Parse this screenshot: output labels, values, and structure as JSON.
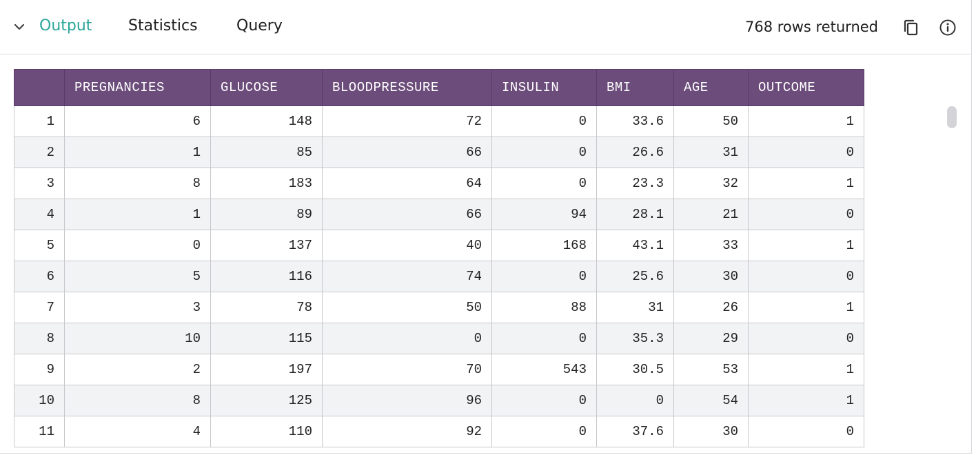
{
  "header": {
    "tabs": [
      {
        "label": "Output",
        "active": true
      },
      {
        "label": "Statistics",
        "active": false
      },
      {
        "label": "Query",
        "active": false
      }
    ],
    "rows_returned": "768 rows returned",
    "icons": {
      "collapse": "chevron-down-icon",
      "copy": "copy-icon",
      "info": "info-icon"
    },
    "accent_color": "#2aa79b"
  },
  "table": {
    "header_color": "#6b4c7a",
    "columns": [
      "",
      "PREGNANCIES",
      "GLUCOSE",
      "BLOODPRESSURE",
      "INSULIN",
      "BMI",
      "AGE",
      "OUTCOME"
    ],
    "rows": [
      [
        "1",
        "6",
        "148",
        "72",
        "0",
        "33.6",
        "50",
        "1"
      ],
      [
        "2",
        "1",
        "85",
        "66",
        "0",
        "26.6",
        "31",
        "0"
      ],
      [
        "3",
        "8",
        "183",
        "64",
        "0",
        "23.3",
        "32",
        "1"
      ],
      [
        "4",
        "1",
        "89",
        "66",
        "94",
        "28.1",
        "21",
        "0"
      ],
      [
        "5",
        "0",
        "137",
        "40",
        "168",
        "43.1",
        "33",
        "1"
      ],
      [
        "6",
        "5",
        "116",
        "74",
        "0",
        "25.6",
        "30",
        "0"
      ],
      [
        "7",
        "3",
        "78",
        "50",
        "88",
        "31",
        "26",
        "1"
      ],
      [
        "8",
        "10",
        "115",
        "0",
        "0",
        "35.3",
        "29",
        "0"
      ],
      [
        "9",
        "2",
        "197",
        "70",
        "543",
        "30.5",
        "53",
        "1"
      ],
      [
        "10",
        "8",
        "125",
        "96",
        "0",
        "0",
        "54",
        "1"
      ],
      [
        "11",
        "4",
        "110",
        "92",
        "0",
        "37.6",
        "30",
        "0"
      ]
    ]
  }
}
